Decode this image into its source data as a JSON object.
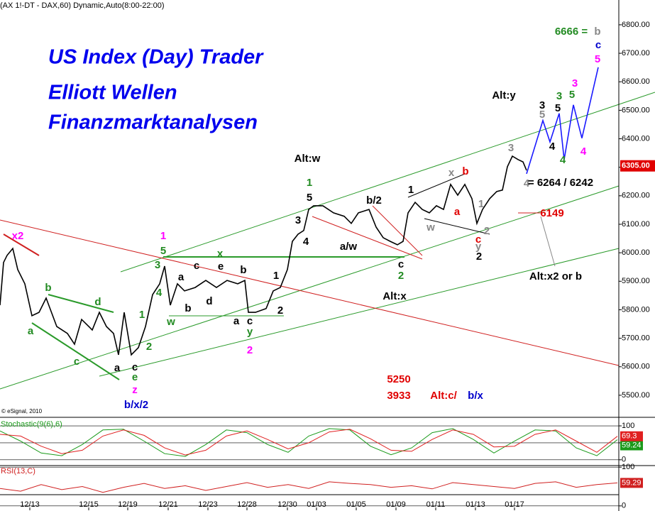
{
  "header": "(AX 1!-DT - DAX,60) Dynamic,Auto(8:00-22:00)",
  "titles": [
    "US Index (Day) Trader",
    "Elliott Wellen",
    "Finanzmarktanalysen"
  ],
  "copyright": "© eSignal, 2010",
  "annotations": [
    "x2",
    "a",
    "b",
    "c",
    "d",
    "e",
    "z",
    "b/x/2",
    "c",
    "a",
    "1",
    "2",
    "3",
    "4",
    "5",
    "1",
    "w",
    "a",
    "b",
    "c",
    "d",
    "e",
    "x",
    "b",
    "a",
    "c",
    "y",
    "2",
    "1",
    "2",
    "3",
    "4",
    "5",
    "1",
    "Alt:w",
    "b/2",
    "a/w",
    "c",
    "2",
    "Alt:x",
    "1",
    "w",
    "x",
    "b",
    "a",
    "1",
    "2",
    "c",
    "y",
    "2",
    "3",
    "4",
    "= 6264 / 6242",
    "6149",
    "Alt:x2 or b",
    "Alt:y",
    "3",
    "5",
    "3",
    "5",
    "4",
    "4",
    "5",
    "3",
    "4",
    "6666 =",
    "b",
    "c",
    "5",
    "5250",
    "3933",
    "Alt:c/",
    "b/x"
  ],
  "chart_data": [
    {
      "type": "line",
      "xlim": [
        0,
        872
      ],
      "ylim": [
        5430,
        6887
      ],
      "xticks": [
        {
          "value": 42,
          "label": "12/13"
        },
        {
          "value": 125,
          "label": "12/15"
        },
        {
          "value": 180,
          "label": "12/19"
        },
        {
          "value": 237,
          "label": "12/21"
        },
        {
          "value": 293,
          "label": "12/23"
        },
        {
          "value": 348,
          "label": "12/28"
        },
        {
          "value": 405,
          "label": "12/30"
        },
        {
          "value": 446,
          "label": "01/03"
        },
        {
          "value": 502,
          "label": "01/05"
        },
        {
          "value": 558,
          "label": "01/09"
        },
        {
          "value": 614,
          "label": "01/11"
        },
        {
          "value": 670,
          "label": "01/13"
        },
        {
          "value": 725,
          "label": "01/17"
        }
      ],
      "yticks": [
        {
          "value": 5500,
          "label": "5500.00"
        },
        {
          "value": 5600,
          "label": "5600.00"
        },
        {
          "value": 5700,
          "label": "5700.00"
        },
        {
          "value": 5800,
          "label": "5800.00"
        },
        {
          "value": 5900,
          "label": "5900.00"
        },
        {
          "value": 6000,
          "label": "6000.00"
        },
        {
          "value": 6100,
          "label": "6100.00"
        },
        {
          "value": 6200,
          "label": "6200.00"
        },
        {
          "value": 6300,
          "label": "6300.00"
        },
        {
          "value": 6400,
          "label": "6400.00"
        },
        {
          "value": 6500,
          "label": "6500.00"
        },
        {
          "value": 6600,
          "label": "6600.00"
        },
        {
          "value": 6700,
          "label": "6700.00"
        },
        {
          "value": 6800,
          "label": "6800.00"
        }
      ],
      "last_price": {
        "value": 6305,
        "label": "6305.00"
      },
      "series": [
        {
          "name": "DAX",
          "color": "#000000",
          "x": [
            0,
            5,
            10,
            18,
            25,
            35,
            45,
            55,
            65,
            80,
            95,
            105,
            115,
            130,
            140,
            150,
            160,
            167,
            175,
            185,
            195,
            205,
            215,
            225,
            232,
            240,
            250,
            260,
            275,
            290,
            305,
            320,
            335,
            345,
            350,
            360,
            375,
            385,
            395,
            405,
            412,
            420,
            428,
            435,
            442,
            455,
            470,
            485,
            495,
            505,
            520,
            530,
            540,
            550,
            560,
            568,
            575,
            585,
            595,
            605,
            615,
            625,
            635,
            645,
            655,
            665,
            672,
            680,
            690,
            700,
            708,
            715,
            722,
            730,
            737,
            742
          ],
          "values": [
            5816,
            5966,
            5991,
            6015,
            5941,
            5891,
            5779,
            5791,
            5841,
            5741,
            5717,
            5679,
            5766,
            5729,
            5791,
            5741,
            5717,
            5642,
            5791,
            5642,
            5667,
            5741,
            5853,
            5891,
            5953,
            5816,
            5891,
            5866,
            5878,
            5903,
            5878,
            5903,
            5891,
            5903,
            5791,
            5791,
            5804,
            5866,
            5878,
            5941,
            6040,
            6065,
            6078,
            6152,
            6165,
            6165,
            6140,
            6128,
            6103,
            6140,
            6152,
            6090,
            6053,
            6040,
            6028,
            6040,
            6140,
            6177,
            6152,
            6140,
            6165,
            6152,
            6240,
            6202,
            6240,
            6190,
            6103,
            6152,
            6190,
            6215,
            6220,
            6302,
            6339,
            6327,
            6319,
            6289
          ]
        },
        {
          "name": "Projection",
          "color": "#1a1aff",
          "x": [
            742,
            765,
            775,
            788,
            795,
            808,
            820,
            843
          ],
          "values": [
            6277,
            6464,
            6389,
            6489,
            6327,
            6519,
            6402,
            6651
          ]
        }
      ]
    },
    {
      "type": "line",
      "title": "Stochastic(9(6),6)",
      "xlim": [
        0,
        872
      ],
      "ylim": [
        -15,
        121
      ],
      "yticks": [
        0,
        50,
        100
      ],
      "series": [
        {
          "name": "%K",
          "color": "#1a9a1a",
          "x": [
            0,
            29,
            58,
            87,
            116,
            145,
            174,
            203,
            232,
            261,
            290,
            319,
            348,
            377,
            406,
            435,
            464,
            493,
            522,
            551,
            580,
            609,
            638,
            667,
            696,
            725,
            754,
            783,
            812,
            841,
            870
          ],
          "values": [
            85,
            55,
            20,
            12,
            45,
            88,
            90,
            55,
            18,
            10,
            45,
            88,
            80,
            45,
            22,
            70,
            92,
            88,
            40,
            15,
            35,
            80,
            92,
            60,
            20,
            55,
            88,
            85,
            35,
            12,
            59.24
          ]
        },
        {
          "name": "%D",
          "color": "#e02020",
          "x": [
            0,
            29,
            58,
            87,
            116,
            145,
            174,
            203,
            232,
            261,
            290,
            319,
            348,
            377,
            406,
            435,
            464,
            493,
            522,
            551,
            580,
            609,
            638,
            667,
            696,
            725,
            754,
            783,
            812,
            841,
            870
          ],
          "values": [
            75,
            70,
            40,
            18,
            28,
            70,
            88,
            72,
            35,
            14,
            28,
            70,
            85,
            60,
            32,
            50,
            82,
            90,
            62,
            28,
            25,
            60,
            88,
            75,
            38,
            40,
            75,
            88,
            55,
            22,
            69.3
          ]
        }
      ]
    },
    {
      "type": "line",
      "title": "RSI(13,C)",
      "xlim": [
        0,
        872
      ],
      "ylim": [
        -4,
        104
      ],
      "yticks": [
        0,
        100
      ],
      "series": [
        {
          "name": "RSI",
          "color": "#d02020",
          "x": [
            0,
            29,
            58,
            87,
            116,
            145,
            174,
            203,
            232,
            261,
            290,
            319,
            348,
            377,
            406,
            435,
            464,
            493,
            522,
            551,
            580,
            609,
            638,
            667,
            696,
            725,
            754,
            783,
            812,
            841,
            870
          ],
          "values": [
            45,
            38,
            55,
            42,
            50,
            35,
            48,
            58,
            45,
            52,
            40,
            50,
            60,
            48,
            55,
            45,
            62,
            58,
            55,
            48,
            52,
            44,
            60,
            55,
            50,
            45,
            58,
            62,
            48,
            55,
            59.29
          ]
        }
      ]
    }
  ]
}
